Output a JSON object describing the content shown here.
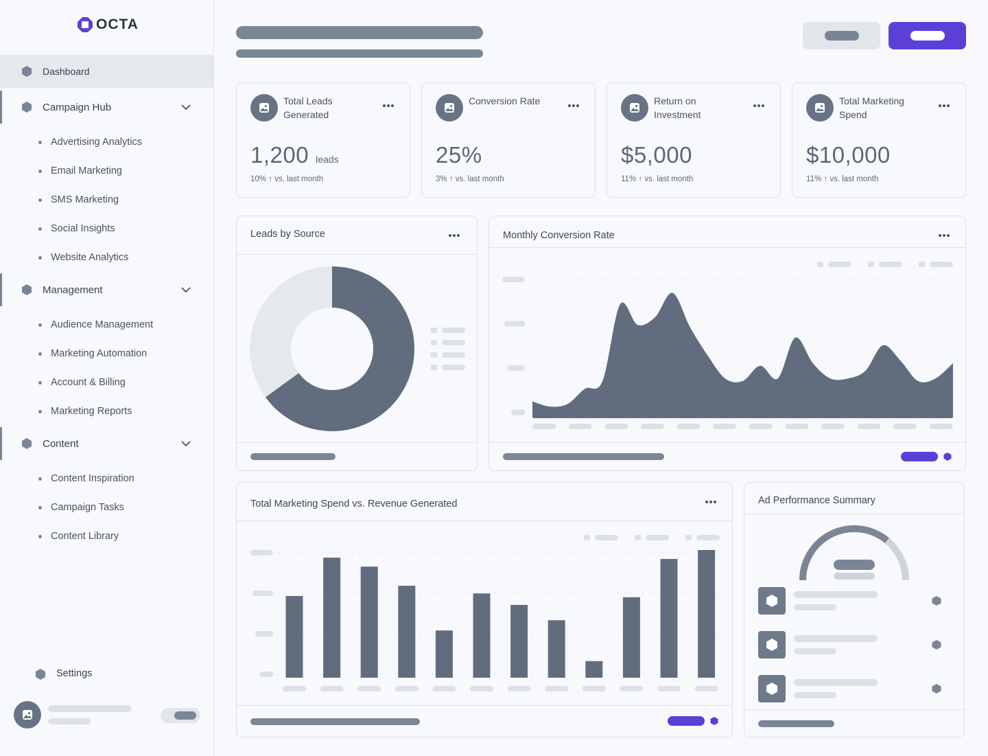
{
  "brand": {
    "name": "OCTA",
    "accent": "#5b3fd6",
    "chart_color": "#616d7f"
  },
  "sidebar": {
    "dashboard": {
      "label": "Dashboard",
      "icon": "hexagon-icon"
    },
    "groups": [
      {
        "label": "Campaign Hub",
        "icon": "hexagon-icon",
        "items": [
          "Advertising Analytics",
          "Email Marketing",
          "SMS Marketing",
          "Social Insights",
          "Website Analytics"
        ]
      },
      {
        "label": "Management",
        "icon": "hexagon-icon",
        "items": [
          "Audience Management",
          "Marketing Automation",
          "Account & Billing",
          "Marketing Reports"
        ]
      },
      {
        "label": "Content",
        "icon": "hexagon-icon",
        "items": [
          "Content Inspiration",
          "Campaign Tasks",
          "Content Library"
        ]
      }
    ],
    "settings": {
      "label": "Settings",
      "icon": "hexagon-icon"
    }
  },
  "stats": [
    {
      "title": "Total Leads Generated",
      "value": "1,200",
      "unit": "leads",
      "delta_pct": "10%",
      "delta_arrow": "↑",
      "delta_text": "vs. last month"
    },
    {
      "title": "Conversion Rate",
      "value": "25%",
      "unit": "",
      "delta_pct": "3%",
      "delta_arrow": "↑",
      "delta_text": "vs. last month"
    },
    {
      "title": "Return on Investment",
      "value": "$5,000",
      "unit": "",
      "delta_pct": "11%",
      "delta_arrow": "↑",
      "delta_text": "vs. last month"
    },
    {
      "title": "Total Marketing Spend",
      "value": "$10,000",
      "unit": "",
      "delta_pct": "11%",
      "delta_arrow": "↑",
      "delta_text": "vs. last month"
    }
  ],
  "panels": {
    "leads_by_source": {
      "title": "Leads by Source"
    },
    "monthly_conversion": {
      "title": "Monthly Conversion Rate"
    },
    "spend_vs_revenue": {
      "title": "Total Marketing Spend vs. Revenue Generated"
    },
    "ad_performance": {
      "title": "Ad Performance Summary",
      "gauge_fraction": 0.72
    }
  },
  "chart_data": [
    {
      "type": "pie",
      "title": "Leads by Source",
      "values": [
        0.65,
        0.35
      ],
      "colors": [
        "#616d7f",
        "#e5e8ec"
      ]
    },
    {
      "type": "area",
      "title": "Monthly Conversion Rate",
      "x": [
        0,
        1,
        2,
        3,
        4,
        5,
        6,
        7,
        8,
        9,
        10,
        11,
        12,
        13,
        14,
        15,
        16,
        17,
        18,
        19,
        20,
        21,
        22,
        23,
        24
      ],
      "values": [
        0.12,
        0.08,
        0.1,
        0.22,
        0.28,
        0.88,
        0.72,
        0.78,
        0.97,
        0.7,
        0.48,
        0.3,
        0.28,
        0.4,
        0.3,
        0.62,
        0.42,
        0.3,
        0.3,
        0.36,
        0.56,
        0.44,
        0.28,
        0.3,
        0.42
      ],
      "ylim": [
        0,
        1
      ]
    },
    {
      "type": "bar",
      "title": "Total Marketing Spend vs. Revenue Generated",
      "values": [
        0.64,
        0.94,
        0.87,
        0.72,
        0.37,
        0.66,
        0.57,
        0.45,
        0.13,
        0.63,
        0.93,
        1.0
      ],
      "ylim": [
        0,
        1
      ]
    }
  ]
}
